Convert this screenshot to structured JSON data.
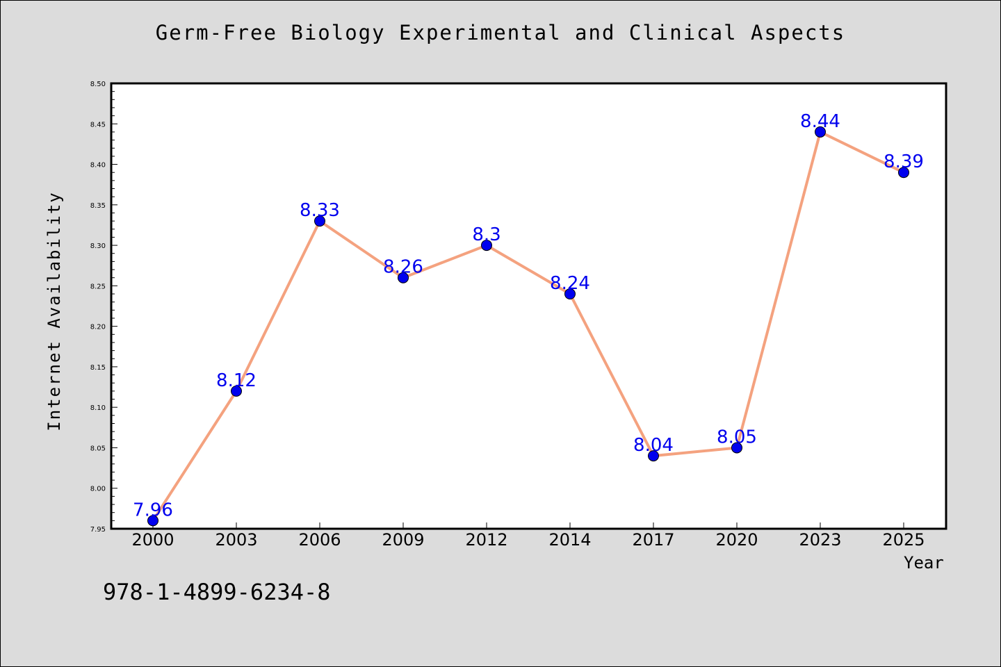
{
  "chart_data": {
    "type": "line",
    "title": "Germ-Free Biology Experimental and Clinical Aspects",
    "xlabel": "Year",
    "ylabel": "Internet Availability",
    "categories": [
      "2000",
      "2003",
      "2006",
      "2009",
      "2012",
      "2014",
      "2017",
      "2020",
      "2023",
      "2025"
    ],
    "series": [
      {
        "values": [
          7.96,
          8.12,
          8.33,
          8.26,
          8.3,
          8.24,
          8.04,
          8.05,
          8.44,
          8.39
        ],
        "data_labels": [
          "7.96",
          "8.12",
          "8.33",
          "8.26",
          "8.3",
          "8.24",
          "8.04",
          "8.05",
          "8.44",
          "8.39"
        ],
        "line_color": "#f4a27f",
        "marker_color": "#0000ee",
        "label_color": "#0000ee"
      }
    ],
    "ylim": [
      7.95,
      8.5
    ],
    "yticks": [
      "7.95",
      "8.00",
      "8.05",
      "8.10",
      "8.15",
      "8.20",
      "8.25",
      "8.30",
      "8.35",
      "8.40",
      "8.45",
      "8.50"
    ],
    "grid": false,
    "legend": "none"
  },
  "annotation": {
    "isbn": "978-1-4899-6234-8"
  },
  "colors": {
    "background": "#dcdcdc",
    "plot_background": "#ffffff"
  }
}
